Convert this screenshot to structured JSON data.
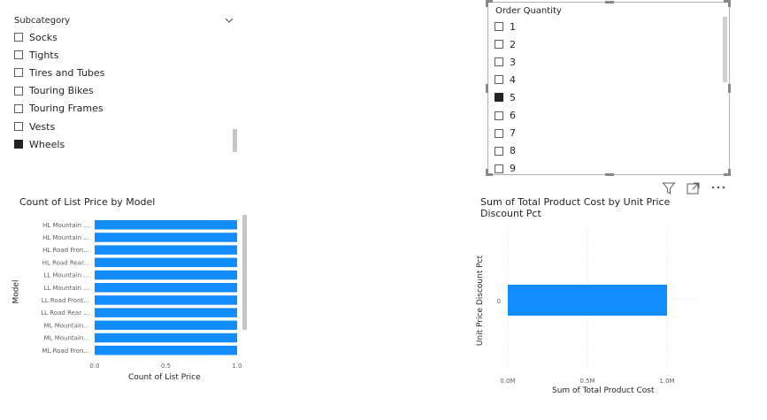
{
  "subcategory_slicer": {
    "title": "Subcategory",
    "items": [
      {
        "label": "Socks",
        "checked": false
      },
      {
        "label": "Tights",
        "checked": false
      },
      {
        "label": "Tires and Tubes",
        "checked": false
      },
      {
        "label": "Touring Bikes",
        "checked": false
      },
      {
        "label": "Touring Frames",
        "checked": false
      },
      {
        "label": "Vests",
        "checked": false
      },
      {
        "label": "Wheels",
        "checked": true
      }
    ]
  },
  "order_quantity_slicer": {
    "title": "Order Quantity",
    "items": [
      {
        "label": "1",
        "checked": false
      },
      {
        "label": "2",
        "checked": false
      },
      {
        "label": "3",
        "checked": false
      },
      {
        "label": "4",
        "checked": false
      },
      {
        "label": "5",
        "checked": true
      },
      {
        "label": "6",
        "checked": false
      },
      {
        "label": "7",
        "checked": false
      },
      {
        "label": "8",
        "checked": false
      },
      {
        "label": "9",
        "checked": false
      }
    ]
  },
  "visual_header_icons": [
    "filter-icon",
    "focus-mode-icon",
    "more-options-icon"
  ],
  "chart_data": [
    {
      "type": "bar",
      "orientation": "horizontal",
      "title": "Count of List Price by Model",
      "xlabel": "Count of List Price",
      "ylabel": "Model",
      "categories": [
        "HL Mountain ...",
        "HL Mountain ...",
        "HL Road Fron...",
        "HL Road Rear...",
        "LL Mountain ...",
        "LL Mountain ...",
        "LL Road Front...",
        "LL Road Rear ...",
        "ML Mountain...",
        "ML Mountain...",
        "ML Road Fron..."
      ],
      "values": [
        1,
        1,
        1,
        1,
        1,
        1,
        1,
        1,
        1,
        1,
        1
      ],
      "xlim": [
        0,
        1
      ],
      "xticks": [
        "0.0",
        "0.5",
        "1.0"
      ],
      "color": "#118DFF"
    },
    {
      "type": "bar",
      "orientation": "horizontal",
      "title": "Sum of Total Product Cost by Unit Price Discount Pct",
      "xlabel": "Sum of Total Product Cost",
      "ylabel": "Unit Price Discount Pct",
      "categories": [
        "0"
      ],
      "values": [
        1000000
      ],
      "xlim": [
        0,
        1100000
      ],
      "xticks": [
        "0.0M",
        "0.5M",
        "1.0M"
      ],
      "color": "#118DFF"
    }
  ]
}
